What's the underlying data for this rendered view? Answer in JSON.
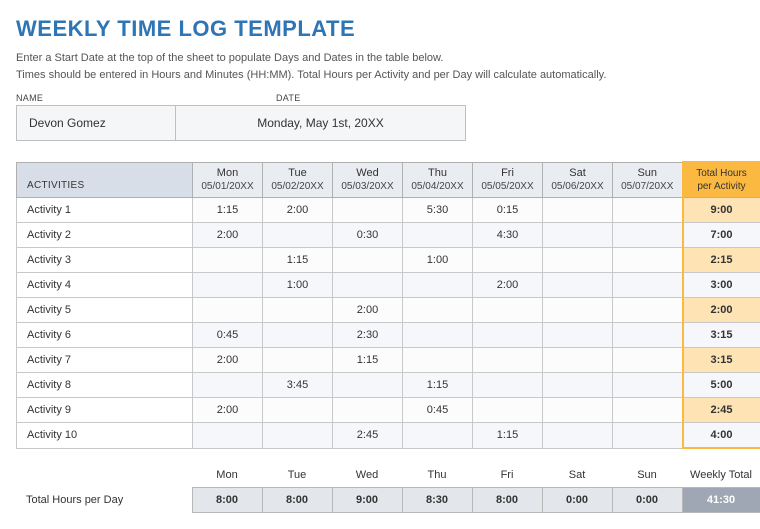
{
  "title": "WEEKLY TIME LOG TEMPLATE",
  "instructions_line1": "Enter a Start Date at the top of the sheet to populate Days and Dates in the table below.",
  "instructions_line2": "Times should be entered in Hours and Minutes (HH:MM).  Total Hours per Activity and per Day will calculate automatically.",
  "meta": {
    "name_label": "NAME",
    "date_label": "DATE",
    "name_value": "Devon Gomez",
    "date_value": "Monday, May 1st, 20XX"
  },
  "headers": {
    "activities": "ACTIVITIES",
    "total_per_activity_line1": "Total Hours",
    "total_per_activity_line2": "per Activity"
  },
  "days": [
    {
      "name": "Mon",
      "date": "05/01/20XX"
    },
    {
      "name": "Tue",
      "date": "05/02/20XX"
    },
    {
      "name": "Wed",
      "date": "05/03/20XX"
    },
    {
      "name": "Thu",
      "date": "05/04/20XX"
    },
    {
      "name": "Fri",
      "date": "05/05/20XX"
    },
    {
      "name": "Sat",
      "date": "05/06/20XX"
    },
    {
      "name": "Sun",
      "date": "05/07/20XX"
    }
  ],
  "activities": [
    {
      "name": "Activity 1",
      "cells": [
        "1:15",
        "2:00",
        "",
        "5:30",
        "0:15",
        "",
        ""
      ],
      "total": "9:00"
    },
    {
      "name": "Activity 2",
      "cells": [
        "2:00",
        "",
        "0:30",
        "",
        "4:30",
        "",
        ""
      ],
      "total": "7:00"
    },
    {
      "name": "Activity 3",
      "cells": [
        "",
        "1:15",
        "",
        "1:00",
        "",
        "",
        ""
      ],
      "total": "2:15"
    },
    {
      "name": "Activity 4",
      "cells": [
        "",
        "1:00",
        "",
        "",
        "2:00",
        "",
        ""
      ],
      "total": "3:00"
    },
    {
      "name": "Activity 5",
      "cells": [
        "",
        "",
        "2:00",
        "",
        "",
        "",
        ""
      ],
      "total": "2:00"
    },
    {
      "name": "Activity 6",
      "cells": [
        "0:45",
        "",
        "2:30",
        "",
        "",
        "",
        ""
      ],
      "total": "3:15"
    },
    {
      "name": "Activity 7",
      "cells": [
        "2:00",
        "",
        "1:15",
        "",
        "",
        "",
        ""
      ],
      "total": "3:15"
    },
    {
      "name": "Activity 8",
      "cells": [
        "",
        "3:45",
        "",
        "1:15",
        "",
        "",
        ""
      ],
      "total": "5:00"
    },
    {
      "name": "Activity 9",
      "cells": [
        "2:00",
        "",
        "",
        "0:45",
        "",
        "",
        ""
      ],
      "total": "2:45"
    },
    {
      "name": "Activity 10",
      "cells": [
        "",
        "",
        "2:45",
        "",
        "1:15",
        "",
        ""
      ],
      "total": "4:00"
    }
  ],
  "footer": {
    "lead_days": "",
    "days": [
      "Mon",
      "Tue",
      "Wed",
      "Thu",
      "Fri",
      "Sat",
      "Sun"
    ],
    "weekly_total_label": "Weekly Total",
    "lead_values": "Total Hours per Day",
    "values": [
      "8:00",
      "8:00",
      "9:00",
      "8:30",
      "8:00",
      "0:00",
      "0:00"
    ],
    "weekly_total_value": "41:30"
  },
  "style": {
    "title_color": "#2e75b6",
    "header_bg": "#e9ecf1",
    "activities_header_bg": "#d8dee8",
    "total_header_bg": "#fcb941",
    "row_total_bg": "#fee3b4",
    "footer_values_bg": "#e3e6eb",
    "weekly_total_bg": "#9ea7b3",
    "border_color": "#c8c8c8"
  }
}
